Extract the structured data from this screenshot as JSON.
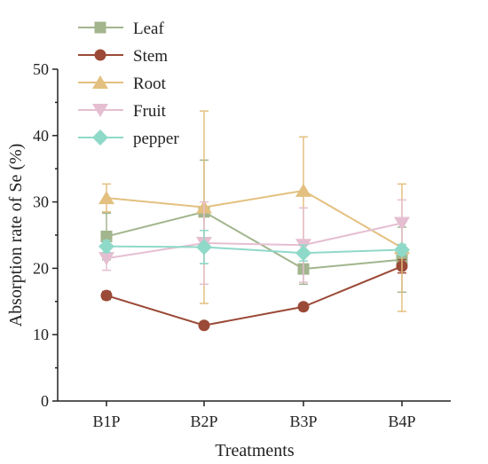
{
  "chart_data": {
    "type": "line",
    "xlabel": "Treatments",
    "ylabel": "Absorption rate of Se (%)",
    "categories": [
      "B1P",
      "B2P",
      "B3P",
      "B4P"
    ],
    "ylim": [
      0,
      50
    ],
    "yticks": [
      "0",
      "10",
      "20",
      "30",
      "40",
      "50"
    ],
    "legend_position": "top-left",
    "grid": false,
    "series": [
      {
        "name": "Leaf",
        "marker": "square",
        "color": "#a2b58d",
        "values": [
          24.8,
          28.5,
          19.9,
          21.3
        ],
        "errors": [
          3.5,
          7.8,
          2.3,
          4.9
        ]
      },
      {
        "name": "Stem",
        "marker": "circle",
        "color": "#9b4a37",
        "values": [
          15.9,
          11.4,
          14.2,
          20.3
        ],
        "errors": [
          0.6,
          0.5,
          0.5,
          1.0
        ]
      },
      {
        "name": "Root",
        "marker": "triangle-up",
        "color": "#e3c07f",
        "values": [
          30.6,
          29.2,
          31.7,
          23.1
        ],
        "errors": [
          2.1,
          14.5,
          8.1,
          9.6
        ]
      },
      {
        "name": "Fruit",
        "marker": "triangle-down",
        "color": "#e5bfd1",
        "values": [
          21.5,
          23.8,
          23.5,
          26.8
        ],
        "errors": [
          1.8,
          6.2,
          5.6,
          3.5
        ]
      },
      {
        "name": "pepper",
        "marker": "diamond",
        "color": "#8fd9c9",
        "values": [
          23.3,
          23.2,
          22.3,
          22.8
        ],
        "errors": [
          0.9,
          2.5,
          1.2,
          0.8
        ]
      }
    ]
  }
}
